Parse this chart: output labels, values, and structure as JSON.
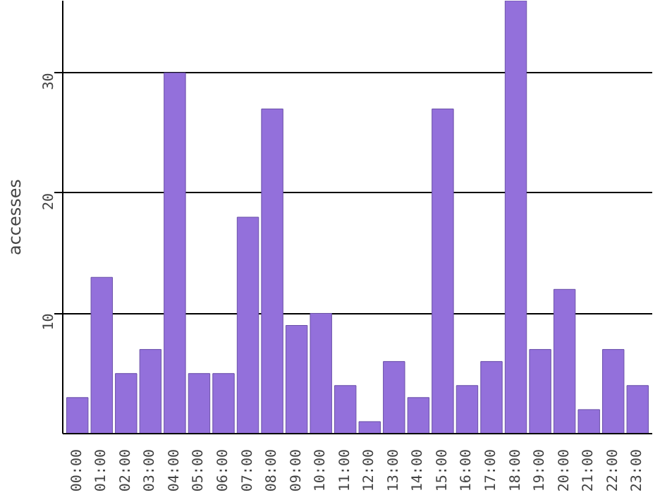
{
  "chart_data": {
    "type": "bar",
    "ylabel": "accesses",
    "categories": [
      "00:00",
      "01:00",
      "02:00",
      "03:00",
      "04:00",
      "05:00",
      "06:00",
      "07:00",
      "08:00",
      "09:00",
      "10:00",
      "11:00",
      "12:00",
      "13:00",
      "14:00",
      "15:00",
      "16:00",
      "17:00",
      "18:00",
      "19:00",
      "20:00",
      "21:00",
      "22:00",
      "23:00"
    ],
    "values": [
      3,
      13,
      5,
      7,
      30,
      5,
      5,
      18,
      27,
      9,
      10,
      4,
      1,
      6,
      3,
      27,
      4,
      6,
      36,
      7,
      12,
      2,
      7,
      4
    ],
    "color": "#9370db",
    "ylim": [
      0,
      36
    ],
    "yticks": [
      10,
      20,
      30
    ],
    "grid": "y"
  }
}
